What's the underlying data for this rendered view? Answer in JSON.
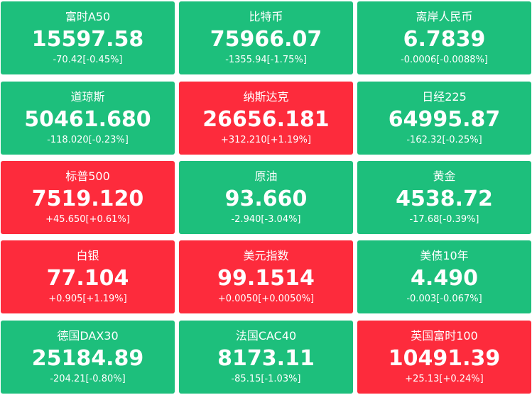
{
  "tiles": [
    {
      "name": "富时A50",
      "price": "15597.58",
      "change": "-70.42[-0.45%]",
      "color": "#1dbf7c"
    },
    {
      "name": "比特币",
      "price": "75966.07",
      "change": "-1355.94[-1.75%]",
      "color": "#1dbf7c"
    },
    {
      "name": "离岸人民币",
      "price": "6.7839",
      "change": "-0.0006[-0.0088%]",
      "color": "#1dbf7c"
    },
    {
      "name": "道琼斯",
      "price": "50461.680",
      "change": "-118.020[-0.23%]",
      "color": "#1dbf7c"
    },
    {
      "name": "纳斯达克",
      "price": "26656.181",
      "change": "+312.210[+1.19%]",
      "color": "#fd2b3c"
    },
    {
      "name": "日经225",
      "price": "64995.87",
      "change": "-162.32[-0.25%]",
      "color": "#1dbf7c"
    },
    {
      "name": "标普500",
      "price": "7519.120",
      "change": "+45.650[+0.61%]",
      "color": "#fd2b3c"
    },
    {
      "name": "原油",
      "price": "93.660",
      "change": "-2.940[-3.04%]",
      "color": "#1dbf7c"
    },
    {
      "name": "黄金",
      "price": "4538.72",
      "change": "-17.68[-0.39%]",
      "color": "#1dbf7c"
    },
    {
      "name": "白银",
      "price": "77.104",
      "change": "+0.905[+1.19%]",
      "color": "#fd2b3c"
    },
    {
      "name": "美元指数",
      "price": "99.1514",
      "change": "+0.0050[+0.0050%]",
      "color": "#fd2b3c"
    },
    {
      "name": "美债10年",
      "price": "4.490",
      "change": "-0.003[-0.067%]",
      "color": "#1dbf7c"
    },
    {
      "name": "德国DAX30",
      "price": "25184.89",
      "change": "-204.21[-0.80%]",
      "color": "#1dbf7c"
    },
    {
      "name": "法国CAC40",
      "price": "8173.11",
      "change": "-85.15[-1.03%]",
      "color": "#1dbf7c"
    },
    {
      "name": "英国富时100",
      "price": "10491.39",
      "change": "+25.13[+0.24%]",
      "color": "#fd2b3c"
    }
  ]
}
